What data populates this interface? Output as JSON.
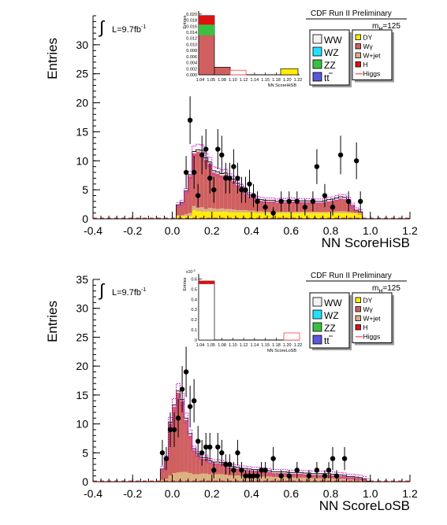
{
  "chart_data": [
    {
      "type": "histogram",
      "experiment": "CDF Run II Preliminary",
      "luminosity": "L=9.7fb",
      "luminosity_exp": "-1",
      "mass_label": "m",
      "mass_sub": "H",
      "mass_value": "=125",
      "xlabel": "NN ScoreHiSB",
      "ylabel": "Entries",
      "xlim": [
        -0.4,
        1.2
      ],
      "ylim": [
        0,
        35
      ],
      "xticks": [
        "-0.4",
        "-0.2",
        "0.0",
        "0.2",
        "0.4",
        "0.6",
        "0.8",
        "1.0",
        "1.2"
      ],
      "yticks": [
        "0",
        "5",
        "10",
        "15",
        "20",
        "25",
        "30"
      ],
      "legend_left": [
        {
          "name": "WW",
          "color": "#f2f2f2"
        },
        {
          "name": "WZ",
          "color": "#22e0ff"
        },
        {
          "name": "ZZ",
          "color": "#39c042"
        },
        {
          "name": "tt",
          "color": "#5858d8"
        }
      ],
      "legend_right": [
        {
          "name": "DY",
          "color": "#ffee00"
        },
        {
          "name": "Wγ",
          "color": "#d06060"
        },
        {
          "name": "W+jet",
          "color": "#dcb080"
        },
        {
          "name": "H",
          "color": "#dd1111"
        },
        {
          "name": "Higgs",
          "color": "#ff6a6a"
        }
      ],
      "bin_edges_start": 0.02,
      "bin_width": 0.02,
      "stack": {
        "DY": [
          0.5,
          0.5,
          0.5,
          0.5,
          1.5,
          1.3,
          1.2,
          1.2,
          1.2,
          1.2,
          1.2,
          1.2,
          1.2,
          1.1,
          1.1,
          1.1,
          1.1,
          1.1,
          1.1,
          1.1,
          1.0,
          1.0,
          1.0,
          1.0,
          1.0,
          1.0,
          1.0,
          1.0,
          1.0,
          1.0,
          1.0,
          1.0,
          1.0,
          1.0,
          1.0,
          1.0,
          1.0,
          1.0,
          1.0,
          1.0,
          1.0,
          1.0,
          1.0,
          1.0,
          1.0,
          1.0,
          1.0
        ],
        "Wgamma": [
          1.7,
          2.1,
          3.9,
          6.4,
          9.1,
          9.7,
          9.5,
          8.5,
          7.6,
          6.2,
          6.1,
          5.7,
          5.9,
          5.2,
          4.9,
          4.3,
          3.7,
          2.8,
          2.5,
          2.2,
          1.9,
          1.8,
          1.8,
          1.8,
          1.8,
          1.6,
          1.8,
          1.7,
          1.8,
          1.8,
          1.6,
          1.7,
          1.7,
          1.7,
          1.7,
          1.6,
          1.6,
          1.7,
          1.8,
          1.9,
          2.0,
          2.2,
          2.1,
          1.9,
          1.1,
          0.3,
          0.2
        ],
        "Wjet": [
          0.1,
          0.1,
          0.3,
          0.5,
          0.7,
          0.6,
          0.8,
          0.5,
          0.7,
          0.6,
          0.5,
          0.6,
          0.5,
          0.6,
          0.5,
          0.4,
          0.4,
          0.4,
          0.3,
          0.3,
          0.3,
          0.3,
          0.2,
          0.2,
          0.2,
          0.2,
          0.2,
          0.2,
          0.2,
          0.2,
          0.2,
          0.2,
          0.2,
          0.2,
          0.2,
          0.2,
          0.2,
          0.2,
          0.2,
          0.2,
          0.3,
          0.3,
          0.3,
          0.2,
          0.1,
          0.1,
          0.0
        ],
        "WW": [
          0.1,
          0.1,
          0.1,
          0.2,
          0.3,
          0.3,
          0.3,
          0.3,
          0.3,
          0.3,
          0.3,
          0.3,
          0.3,
          0.3,
          0.3,
          0.3,
          0.3,
          0.2,
          0.2,
          0.2,
          0.2,
          0.2,
          0.2,
          0.2,
          0.2,
          0.2,
          0.2,
          0.2,
          0.2,
          0.2,
          0.2,
          0.2,
          0.2,
          0.2,
          0.2,
          0.2,
          0.2,
          0.2,
          0.3,
          0.3,
          0.3,
          0.3,
          0.3,
          0.2,
          0.1,
          0.1,
          0.0
        ]
      },
      "data_points": [
        {
          "x": 0.07,
          "y": 8
        },
        {
          "x": 0.09,
          "y": 17
        },
        {
          "x": 0.11,
          "y": 8
        },
        {
          "x": 0.13,
          "y": 4
        },
        {
          "x": 0.15,
          "y": 11
        },
        {
          "x": 0.17,
          "y": 12
        },
        {
          "x": 0.19,
          "y": 7
        },
        {
          "x": 0.21,
          "y": 5
        },
        {
          "x": 0.23,
          "y": 12
        },
        {
          "x": 0.25,
          "y": 11
        },
        {
          "x": 0.27,
          "y": 7
        },
        {
          "x": 0.29,
          "y": 7
        },
        {
          "x": 0.31,
          "y": 9
        },
        {
          "x": 0.33,
          "y": 7
        },
        {
          "x": 0.35,
          "y": 5
        },
        {
          "x": 0.37,
          "y": 5
        },
        {
          "x": 0.39,
          "y": 6
        },
        {
          "x": 0.41,
          "y": 4
        },
        {
          "x": 0.43,
          "y": 3
        },
        {
          "x": 0.47,
          "y": 2
        },
        {
          "x": 0.51,
          "y": 1
        },
        {
          "x": 0.55,
          "y": 3
        },
        {
          "x": 0.59,
          "y": 3
        },
        {
          "x": 0.63,
          "y": 3
        },
        {
          "x": 0.67,
          "y": 2
        },
        {
          "x": 0.71,
          "y": 3
        },
        {
          "x": 0.73,
          "y": 9
        },
        {
          "x": 0.77,
          "y": 4
        },
        {
          "x": 0.81,
          "y": 2
        },
        {
          "x": 0.85,
          "y": 11
        },
        {
          "x": 0.89,
          "y": 3
        },
        {
          "x": 0.93,
          "y": 10
        },
        {
          "x": 0.95,
          "y": 3
        }
      ],
      "inset": {
        "xlabel": "NN ScoreHiSB",
        "ylabel": "Entries",
        "yticks": [
          "0.000",
          "0.002",
          "0.004",
          "0.006",
          "0.008",
          "0.010",
          "0.012",
          "0.014",
          "0.016",
          "0.018",
          "0.020"
        ],
        "ylim": [
          0,
          0.021
        ],
        "xticks": [
          "1.04",
          "1.05",
          "1.08",
          "1.10",
          "1.12",
          "1.14",
          "1.15",
          "1.18",
          "1.20",
          "1.22"
        ]
      }
    },
    {
      "type": "histogram",
      "experiment": "CDF Run II Preliminary",
      "luminosity": "L=9.7fb",
      "luminosity_exp": "-1",
      "mass_label": "m",
      "mass_sub": "H",
      "mass_value": "=125",
      "xlabel": "NN ScoreLoSB",
      "ylabel": "Entries",
      "xlim": [
        -0.4,
        1.2
      ],
      "ylim": [
        0,
        35
      ],
      "xticks": [
        "-0.4",
        "-0.2",
        "0.0",
        "0.2",
        "0.4",
        "0.6",
        "0.8",
        "1.0",
        "1.2"
      ],
      "yticks": [
        "0",
        "5",
        "10",
        "15",
        "20",
        "25",
        "30",
        "35"
      ],
      "legend_left": [
        {
          "name": "WW",
          "color": "#f2f2f2"
        },
        {
          "name": "WZ",
          "color": "#22e0ff"
        },
        {
          "name": "ZZ",
          "color": "#39c042"
        },
        {
          "name": "tt",
          "color": "#5858d8"
        }
      ],
      "legend_right": [
        {
          "name": "DY",
          "color": "#ffee00"
        },
        {
          "name": "Wγ",
          "color": "#d06060"
        },
        {
          "name": "W+jet",
          "color": "#dcb080"
        },
        {
          "name": "H",
          "color": "#dd1111"
        },
        {
          "name": "Higgs",
          "color": "#ff6a6a"
        }
      ],
      "bin_edges_start": -0.06,
      "bin_width": 0.02,
      "stack": {
        "DY": [
          0.1,
          0.1,
          0.1,
          0.1,
          0.1,
          0.1,
          0.1,
          0.1,
          0.1,
          0.1,
          0.1,
          0.1,
          0.1,
          0.1,
          0.1,
          0.1,
          0.1,
          0.1,
          0.1,
          0.1,
          0.1,
          0.1,
          0.1,
          0.1,
          0.1,
          0.1,
          0.1,
          0.1,
          0.1,
          0.1,
          0.1,
          0.1,
          0.1,
          0.1,
          0.1,
          0.1,
          0.1,
          0.1,
          0.1,
          0.1,
          0.1,
          0.1,
          0.1,
          0.1,
          0.1,
          0.1,
          0.1,
          0.1,
          0.1,
          0.1,
          0.1,
          0.1,
          0.1
        ],
        "Wgamma": [
          1.8,
          3.5,
          9.0,
          11.5,
          13.8,
          12.2,
          9.0,
          6.5,
          4.2,
          3.3,
          2.6,
          2.6,
          2.1,
          1.9,
          1.9,
          1.8,
          1.6,
          1.4,
          1.3,
          1.2,
          1.1,
          1.1,
          1.0,
          0.9,
          0.9,
          0.9,
          0.8,
          0.8,
          0.7,
          0.7,
          0.7,
          0.7,
          0.7,
          0.7,
          0.7,
          0.7,
          0.6,
          0.6,
          0.6,
          0.6,
          0.6,
          0.6,
          0.6,
          0.5,
          0.5,
          0.5,
          0.5,
          0.4,
          0.4,
          0.4,
          0.3,
          0.2,
          0.0
        ],
        "Wjet": [
          0.2,
          0.4,
          1.0,
          1.4,
          1.5,
          1.6,
          1.6,
          1.4,
          1.2,
          1.2,
          1.3,
          1.3,
          1.2,
          1.2,
          1.2,
          1.2,
          1.1,
          1.0,
          1.0,
          1.0,
          0.9,
          0.9,
          0.9,
          0.9,
          0.9,
          0.8,
          0.8,
          0.8,
          0.7,
          0.7,
          0.7,
          0.7,
          0.6,
          0.6,
          0.6,
          0.6,
          0.6,
          0.6,
          0.5,
          0.5,
          0.5,
          0.5,
          0.5,
          0.5,
          0.4,
          0.4,
          0.4,
          0.3,
          0.3,
          0.2,
          0.2,
          0.1,
          0.0
        ],
        "WW": [
          0.1,
          0.1,
          0.2,
          0.3,
          0.3,
          0.3,
          0.3,
          0.3,
          0.2,
          0.2,
          0.2,
          0.2,
          0.2,
          0.2,
          0.2,
          0.2,
          0.2,
          0.2,
          0.2,
          0.2,
          0.2,
          0.2,
          0.2,
          0.2,
          0.2,
          0.2,
          0.2,
          0.2,
          0.2,
          0.2,
          0.2,
          0.2,
          0.2,
          0.2,
          0.2,
          0.2,
          0.2,
          0.2,
          0.2,
          0.2,
          0.2,
          0.2,
          0.2,
          0.2,
          0.2,
          0.2,
          0.1,
          0.1,
          0.1,
          0.1,
          0.1,
          0.1,
          0.0
        ]
      },
      "data_points": [
        {
          "x": -0.05,
          "y": 5
        },
        {
          "x": -0.03,
          "y": 4
        },
        {
          "x": -0.01,
          "y": 9
        },
        {
          "x": 0.01,
          "y": 9
        },
        {
          "x": 0.03,
          "y": 11
        },
        {
          "x": 0.05,
          "y": 16
        },
        {
          "x": 0.07,
          "y": 19
        },
        {
          "x": 0.09,
          "y": 13
        },
        {
          "x": 0.11,
          "y": 14
        },
        {
          "x": 0.13,
          "y": 7
        },
        {
          "x": 0.15,
          "y": 5
        },
        {
          "x": 0.17,
          "y": 6
        },
        {
          "x": 0.19,
          "y": 6
        },
        {
          "x": 0.21,
          "y": 2
        },
        {
          "x": 0.23,
          "y": 6
        },
        {
          "x": 0.25,
          "y": 5
        },
        {
          "x": 0.27,
          "y": 3
        },
        {
          "x": 0.29,
          "y": 3
        },
        {
          "x": 0.31,
          "y": 2
        },
        {
          "x": 0.33,
          "y": 5
        },
        {
          "x": 0.35,
          "y": 2
        },
        {
          "x": 0.37,
          "y": 1
        },
        {
          "x": 0.39,
          "y": 1
        },
        {
          "x": 0.41,
          "y": 1
        },
        {
          "x": 0.43,
          "y": 1
        },
        {
          "x": 0.45,
          "y": 2
        },
        {
          "x": 0.47,
          "y": 2
        },
        {
          "x": 0.51,
          "y": 4
        },
        {
          "x": 0.55,
          "y": 1
        },
        {
          "x": 0.59,
          "y": 1
        },
        {
          "x": 0.63,
          "y": 2
        },
        {
          "x": 0.69,
          "y": 1
        },
        {
          "x": 0.73,
          "y": 2
        },
        {
          "x": 0.77,
          "y": 1
        },
        {
          "x": 0.79,
          "y": 2
        },
        {
          "x": 0.81,
          "y": 4
        },
        {
          "x": 0.83,
          "y": 1
        },
        {
          "x": 0.87,
          "y": 4
        }
      ],
      "inset": {
        "xlabel": "NN ScoreLoSB",
        "ylabel": "Entries",
        "multiplier": "x10",
        "multiplier_exp": "-3",
        "yticks": [
          "0",
          "0.1",
          "0.2",
          "0.3",
          "0.4",
          "0.5",
          "0.6"
        ],
        "ylim": [
          0,
          0.65
        ],
        "xticks": [
          "1.04",
          "1.05",
          "1.08",
          "1.10",
          "1.12",
          "1.14",
          "1.15",
          "1.18",
          "1.20",
          "1.22"
        ]
      }
    }
  ]
}
